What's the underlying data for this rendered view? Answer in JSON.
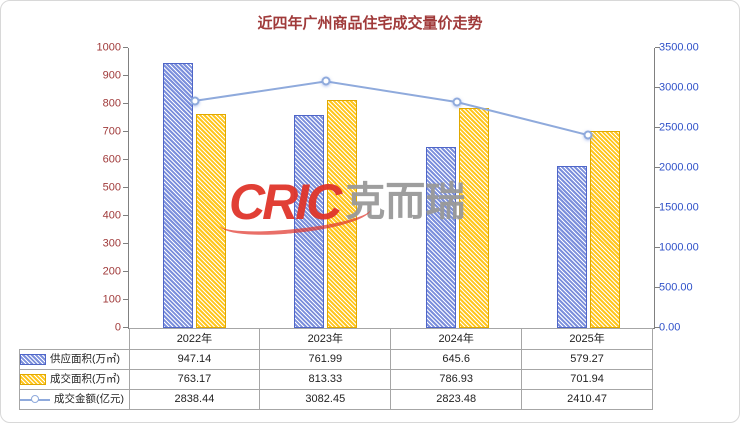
{
  "chart_data": {
    "type": "bar+line",
    "title": "近四年广州商品住宅成交量价走势",
    "categories": [
      "2022年",
      "2023年",
      "2024年",
      "2025年"
    ],
    "series": [
      {
        "name": "供应面积(万㎡)",
        "type": "bar",
        "axis": "left",
        "values": [
          947.14,
          761.99,
          645.6,
          579.27
        ]
      },
      {
        "name": "成交面积(万㎡)",
        "type": "bar",
        "axis": "left",
        "values": [
          763.17,
          813.33,
          786.93,
          701.94
        ]
      },
      {
        "name": "成交金额(亿元)",
        "type": "line",
        "axis": "right",
        "values": [
          2838.44,
          3082.45,
          2823.48,
          2410.47
        ]
      }
    ],
    "left_axis": {
      "min": 0,
      "max": 1000,
      "step": 100
    },
    "right_axis": {
      "min": 0,
      "max": 3500,
      "step": 500,
      "decimals": 2
    },
    "grid": false,
    "legend_position": "table-left"
  },
  "watermark": {
    "cric": "CRIC",
    "cn": "克而瑞"
  },
  "colors": {
    "title": "#a03a3a",
    "left_axis": "#a03a3a",
    "right_axis": "#2f51c9",
    "axis_line": "#808080",
    "supply_stripe": "#7b8fdc",
    "supply_border": "#4f66c8",
    "deal_stripe": "#ffc61e",
    "deal_border": "#e0a800",
    "line": "#8faadc",
    "table_border": "#a6a6a6",
    "watermark_red": "#e0352b",
    "watermark_gray": "#999999"
  }
}
